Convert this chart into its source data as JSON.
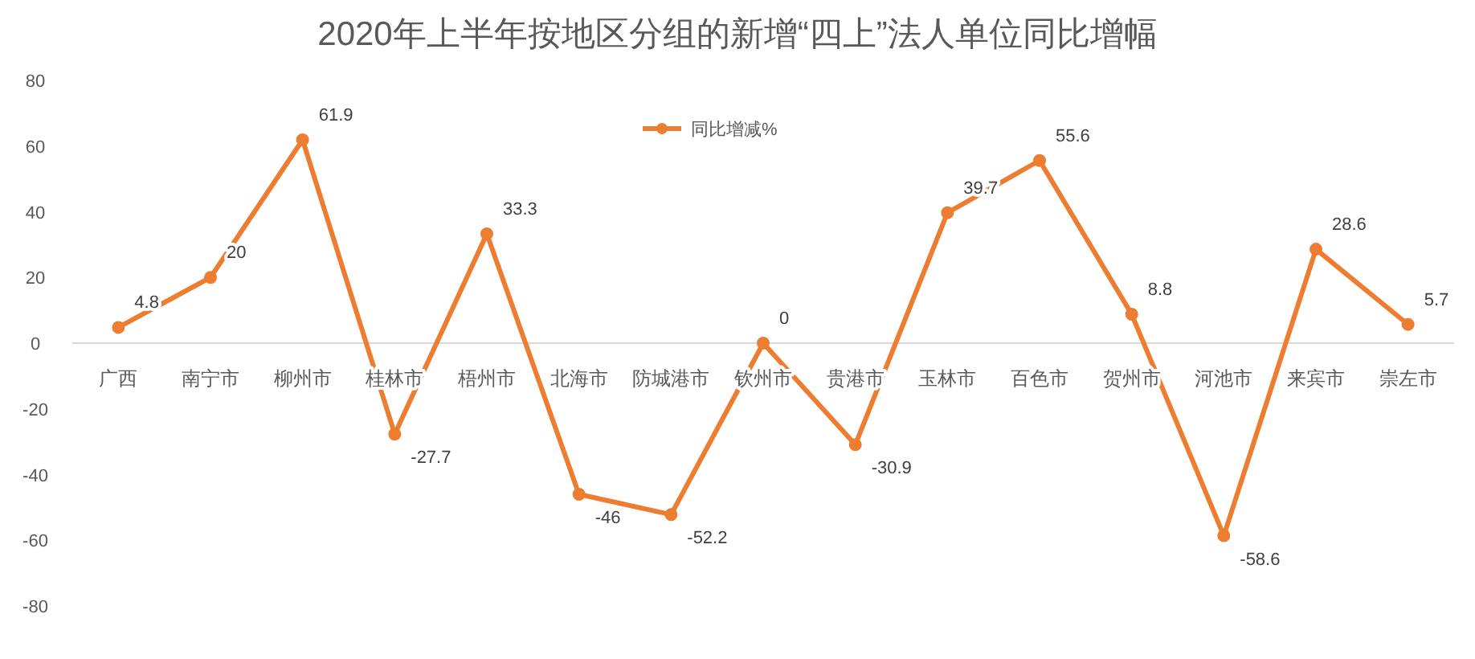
{
  "chart_data": {
    "type": "line",
    "title": "2020年上半年按地区分组的新增“四上”法人单位同比增幅",
    "categories": [
      "广西",
      "南宁市",
      "柳州市",
      "桂林市",
      "梧州市",
      "北海市",
      "防城港市",
      "钦州市",
      "贵港市",
      "玉林市",
      "百色市",
      "贺州市",
      "河池市",
      "来宾市",
      "崇左市"
    ],
    "series": [
      {
        "name": "同比增减%",
        "color": "#ed7d31",
        "values": [
          4.8,
          20,
          61.9,
          -27.7,
          33.3,
          -46,
          -52.2,
          0,
          -30.9,
          39.7,
          55.6,
          8.8,
          -58.6,
          28.6,
          5.7
        ]
      }
    ],
    "ylim": [
      -80,
      80
    ],
    "yticks": [
      -80,
      -60,
      -40,
      -20,
      0,
      20,
      40,
      60,
      80
    ],
    "legend": "top",
    "marker": "circle",
    "line_style": "solid",
    "data_labels": true
  }
}
